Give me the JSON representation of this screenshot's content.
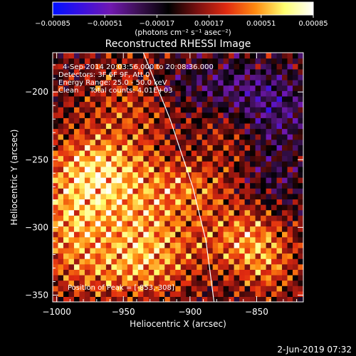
{
  "chart_data": {
    "type": "heatmap",
    "title": "Reconstructed RHESSI Image",
    "xlabel": "Heliocentric X (arcsec)",
    "ylabel": "Heliocentric Y (arcsec)",
    "xlim": [
      -1003,
      -815
    ],
    "ylim": [
      -355,
      -171
    ],
    "x_ticks": [
      -1000,
      -950,
      -900,
      -850
    ],
    "y_ticks": [
      -350,
      -300,
      -250,
      -200
    ],
    "x_tick_labels": [
      "−1000",
      "−950",
      "−900",
      "−850"
    ],
    "y_tick_labels": [
      "−350",
      "−300",
      "−250",
      "−200"
    ],
    "colorbar": {
      "min": -0.00085,
      "max": 0.00085,
      "ticks": [
        -0.00085,
        -0.00051,
        -0.00017,
        0.00017,
        0.00051,
        0.00085
      ],
      "tick_labels": [
        "−0.00085",
        "−0.00051",
        "−0.00017",
        "0.00017",
        "0.00051",
        "0.00085"
      ],
      "unit_label": "(photons cm⁻² s⁻¹ asec⁻²)",
      "colormap": [
        "#0010ff",
        "#3a10e0",
        "#7018b0",
        "#3a1050",
        "#000000",
        "#7a1010",
        "#e02a10",
        "#ff8a10",
        "#ffff70",
        "#ffffff"
      ]
    },
    "grid": false,
    "info_lines": [
      "4-Sep-2014 20:03:56.000 to 20:08:36.000",
      "Detectors: 3F 6F 9F, Att 0",
      "Energy Range: 25.0 - 50.0 keV",
      "Clean     Total counts: 4.01E+03"
    ],
    "peak_label": "Position of Peak = [-853,-308]",
    "limb_curve": [
      [
        -935,
        -171
      ],
      [
        -915,
        -220
      ],
      [
        -898,
        -270
      ],
      [
        -888,
        -310
      ],
      [
        -882,
        -355
      ]
    ],
    "heatmap_blobs": [
      {
        "x": -955,
        "y": -275,
        "sx": 40,
        "sy": 28,
        "a": 0.55
      },
      {
        "x": -975,
        "y": -255,
        "sx": 22,
        "sy": 18,
        "a": 0.35
      },
      {
        "x": -990,
        "y": -305,
        "sx": 18,
        "sy": 22,
        "a": 0.35
      },
      {
        "x": -930,
        "y": -320,
        "sx": 25,
        "sy": 20,
        "a": 0.45
      },
      {
        "x": -945,
        "y": -205,
        "sx": 25,
        "sy": 22,
        "a": 0.28
      },
      {
        "x": -965,
        "y": -335,
        "sx": 30,
        "sy": 15,
        "a": 0.25
      },
      {
        "x": -855,
        "y": -310,
        "sx": 22,
        "sy": 18,
        "a": 0.55
      },
      {
        "x": -895,
        "y": -270,
        "sx": 20,
        "sy": 15,
        "a": 0.25
      },
      {
        "x": -875,
        "y": -235,
        "sx": 15,
        "sy": 12,
        "a": 0.18
      },
      {
        "x": -840,
        "y": -335,
        "sx": 15,
        "sy": 15,
        "a": 0.25
      },
      {
        "x": -835,
        "y": -215,
        "sx": 20,
        "sy": 20,
        "a": -0.35
      },
      {
        "x": -870,
        "y": -195,
        "sx": 28,
        "sy": 14,
        "a": -0.28
      },
      {
        "x": -835,
        "y": -270,
        "sx": 14,
        "sy": 18,
        "a": -0.22
      },
      {
        "x": -915,
        "y": -195,
        "sx": 18,
        "sy": 10,
        "a": -0.15
      },
      {
        "x": -900,
        "y": -240,
        "sx": 12,
        "sy": 12,
        "a": -0.1
      }
    ],
    "footer_date": "2-Jun-2019 07:32"
  }
}
